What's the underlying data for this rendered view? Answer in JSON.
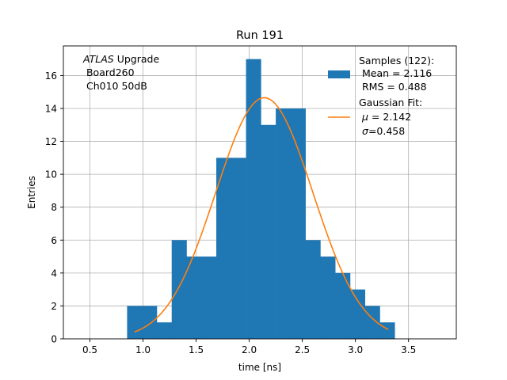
{
  "chart_data": {
    "type": "bar",
    "title": "Run 191",
    "xlabel": "time [ns]",
    "ylabel": "Entries",
    "xlim": [
      0.25,
      3.95
    ],
    "ylim": [
      0,
      17.8
    ],
    "grid": true,
    "x_ticks": [
      0.5,
      1.0,
      1.5,
      2.0,
      2.5,
      3.0,
      3.5
    ],
    "x_tick_labels": [
      "0.5",
      "1.0",
      "1.5",
      "2.0",
      "2.5",
      "3.0",
      "3.5"
    ],
    "y_ticks": [
      0,
      2,
      4,
      6,
      8,
      10,
      12,
      14,
      16
    ],
    "y_tick_labels": [
      "0",
      "2",
      "4",
      "6",
      "8",
      "10",
      "12",
      "14",
      "16"
    ],
    "histogram": {
      "bin_edges": [
        0.85,
        0.99,
        1.13,
        1.27,
        1.41,
        1.55,
        1.69,
        1.83,
        1.97,
        2.11,
        2.25,
        2.39,
        2.53,
        2.67,
        2.81,
        2.95,
        3.09,
        3.23,
        3.37
      ],
      "counts": [
        2,
        2,
        1,
        6,
        5,
        5,
        11,
        11,
        17,
        13,
        14,
        14,
        6,
        5,
        4,
        3,
        2,
        1
      ],
      "color": "#1f77b4"
    },
    "fit": {
      "mu": 2.142,
      "sigma": 0.458,
      "amplitude": 14.65,
      "x_range": [
        0.92,
        3.31
      ],
      "color": "#ff7f0e"
    },
    "annotation": {
      "italic": "ATLAS",
      "rest": " Upgrade",
      "line2": " Board260",
      "line3": " Ch010 50dB"
    },
    "legend": {
      "placement": "upper right",
      "samples_lines": [
        "Samples (122):",
        " Mean = 2.116",
        " RMS = 0.488"
      ],
      "fit_title": "Gaussian Fit:",
      "fit_mu_symbol": "μ",
      "fit_mu_text": " = 2.142",
      "fit_sigma_symbol": "σ",
      "fit_sigma_text": "=0.458"
    }
  }
}
